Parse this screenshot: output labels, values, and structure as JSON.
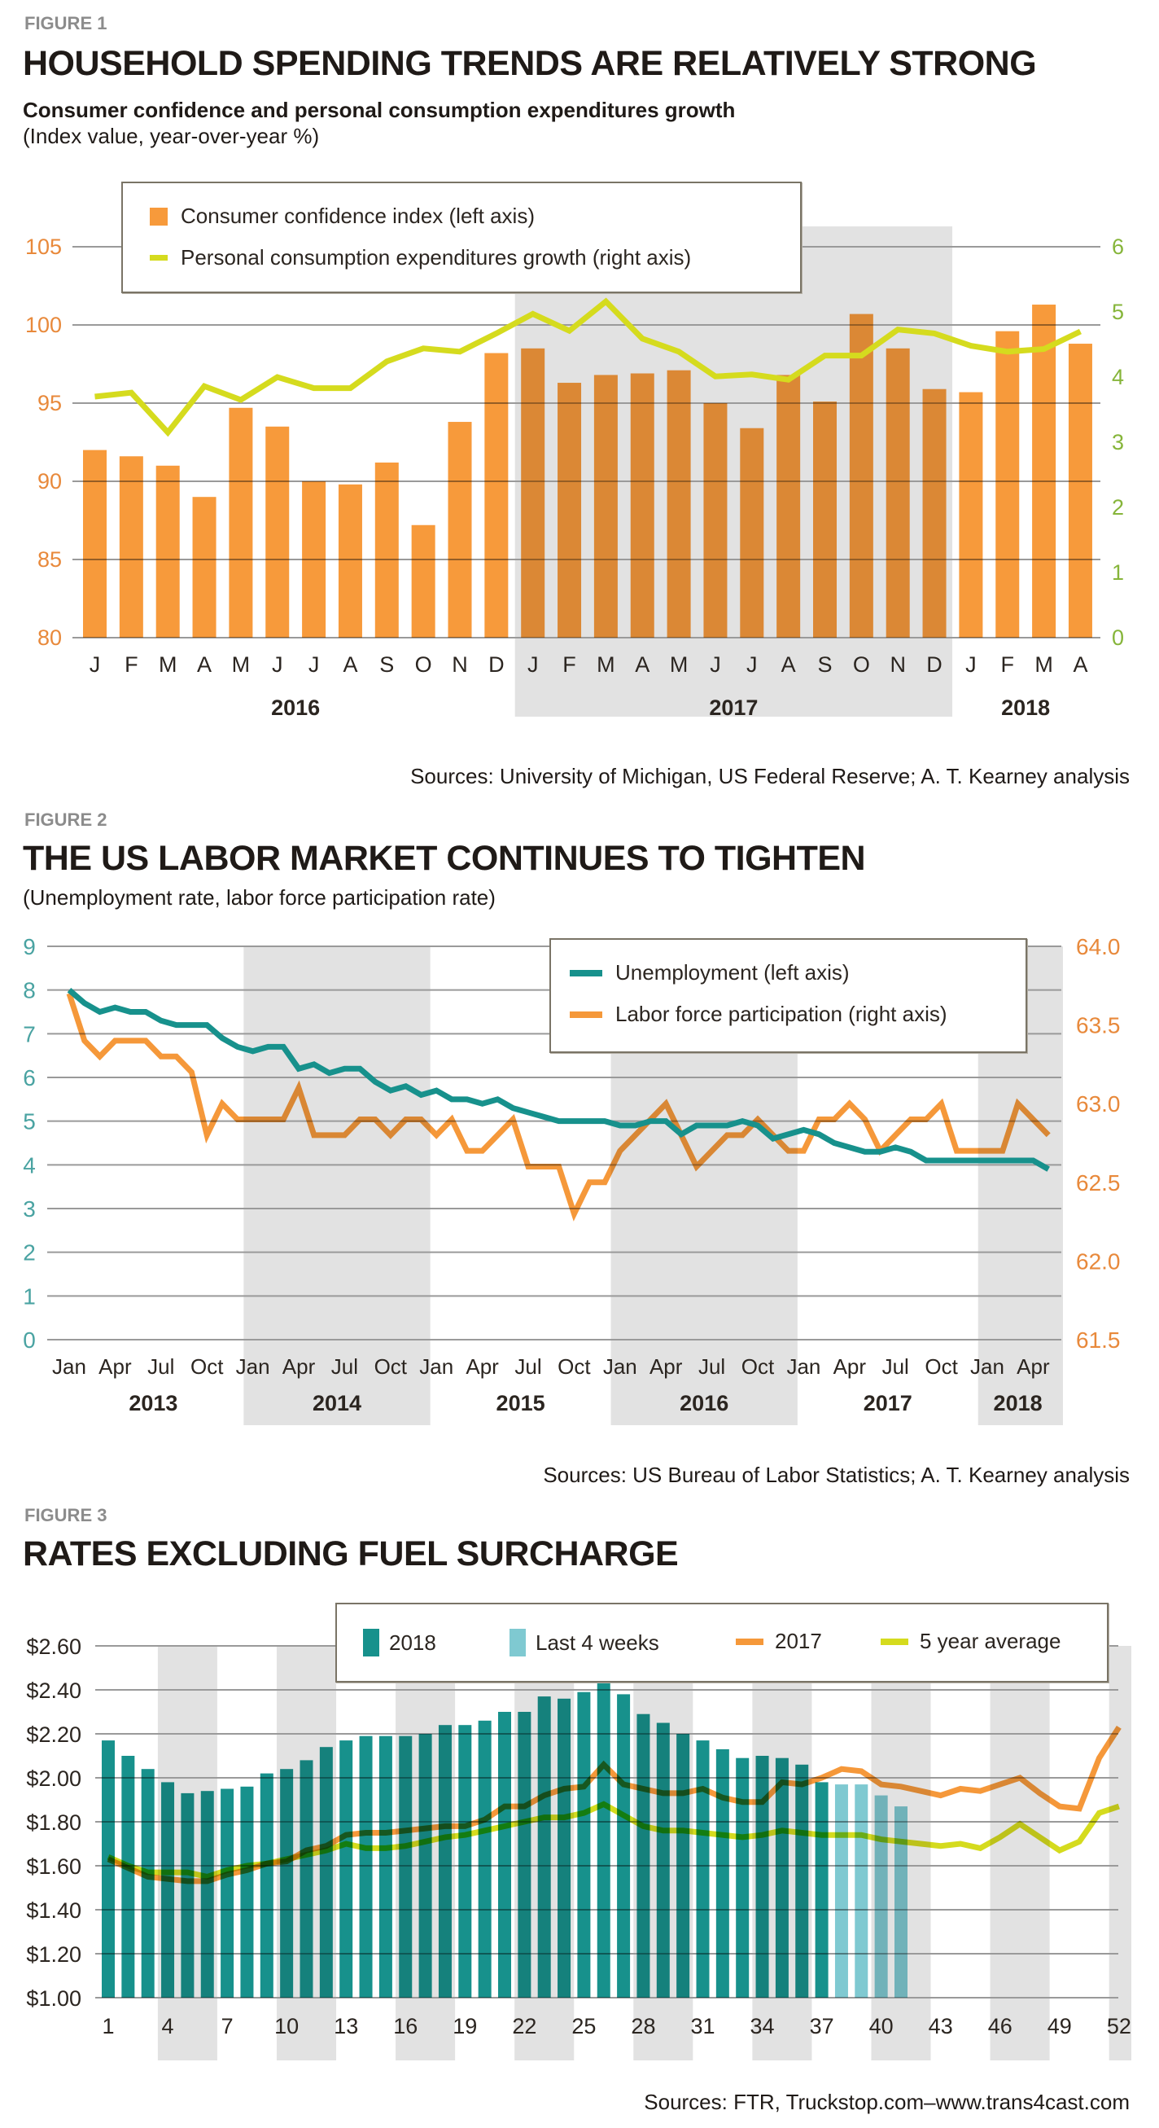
{
  "figure1": {
    "label": "FIGURE 1",
    "title": "HOUSEHOLD SPENDING TRENDS ARE RELATIVELY STRONG",
    "subtitle": "Consumer confidence and personal consumption expenditures growth",
    "note": "(Index value, year-over-year %)",
    "source": "Sources: University of Michigan, US Federal Reserve; A. T. Kearney analysis",
    "legend": [
      "Consumer confidence index (left axis)",
      "Personal consumption expenditures growth (right axis)"
    ]
  },
  "figure2": {
    "label": "FIGURE 2",
    "title": "THE US LABOR MARKET CONTINUES TO TIGHTEN",
    "note": "(Unemployment rate, labor force participation rate)",
    "source": "Sources: US Bureau of Labor Statistics; A. T. Kearney analysis",
    "legend": [
      "Unemployment (left axis)",
      "Labor force participation (right axis)"
    ]
  },
  "figure3": {
    "label": "FIGURE 3",
    "title": "RATES EXCLUDING FUEL SURCHARGE",
    "source": "Sources: FTR, Truckstop.com–www.trans4cast.com",
    "legend": [
      "2018",
      "Last 4 weeks",
      "2017",
      "5 year average"
    ]
  },
  "colors": {
    "bar_orange": "#F79A3B",
    "pce_line": "#D5DB1E",
    "left_axis_orange": "#E8893B",
    "right_axis_green": "#86B53A",
    "teal": "#17918C",
    "light_teal": "#7FC9D1",
    "line_orange": "#F5983A",
    "teal_axis": "#4AA3A2",
    "band_grey": "#E2E2E2"
  },
  "chart_data": [
    {
      "type": "bar",
      "id": "figure1",
      "title": "Consumer confidence and personal consumption expenditures growth",
      "categories": [
        "J",
        "F",
        "M",
        "A",
        "M",
        "J",
        "J",
        "A",
        "S",
        "O",
        "N",
        "D",
        "J",
        "F",
        "M",
        "A",
        "M",
        "J",
        "J",
        "A",
        "S",
        "O",
        "N",
        "D",
        "J",
        "F",
        "M",
        "A"
      ],
      "year_groups": [
        {
          "label": "2016",
          "start": 0,
          "end": 11,
          "shaded": false
        },
        {
          "label": "2017",
          "start": 12,
          "end": 23,
          "shaded": true
        },
        {
          "label": "2018",
          "start": 24,
          "end": 27,
          "shaded": false
        }
      ],
      "series": [
        {
          "name": "Consumer confidence index (left axis)",
          "axis": "left",
          "kind": "bar",
          "values": [
            92.0,
            91.6,
            91.0,
            89.0,
            94.7,
            93.5,
            90.0,
            89.8,
            91.2,
            87.2,
            93.8,
            98.2,
            98.5,
            96.3,
            96.8,
            96.9,
            97.1,
            95.0,
            93.4,
            96.8,
            95.1,
            100.7,
            98.5,
            95.9,
            95.7,
            99.6,
            101.3,
            98.8
          ]
        },
        {
          "name": "Personal consumption expenditures growth (right axis)",
          "axis": "right",
          "kind": "line",
          "values": [
            3.7,
            3.76,
            3.15,
            3.86,
            3.65,
            4.0,
            3.83,
            3.83,
            4.24,
            4.44,
            4.39,
            4.67,
            4.97,
            4.71,
            5.16,
            4.59,
            4.39,
            4.01,
            4.04,
            3.96,
            4.33,
            4.33,
            4.73,
            4.67,
            4.48,
            4.39,
            4.43,
            4.7
          ]
        }
      ],
      "left_axis": {
        "ylim": [
          80,
          105
        ],
        "ticks": [
          80,
          85,
          90,
          95,
          100,
          105
        ]
      },
      "right_axis": {
        "ylim": [
          0,
          6
        ],
        "ticks": [
          0,
          1,
          2,
          3,
          4,
          5,
          6
        ]
      },
      "legend_position": "top-left",
      "grid": true
    },
    {
      "type": "line",
      "id": "figure2",
      "title": "THE US LABOR MARKET CONTINUES TO TIGHTEN",
      "x_start": "Jan 2013",
      "x_end": "May 2018",
      "x_tick_labels": [
        "Jan",
        "Apr",
        "Jul",
        "Oct",
        "Jan",
        "Apr",
        "Jul",
        "Oct",
        "Jan",
        "Apr",
        "Jul",
        "Oct",
        "Jan",
        "Apr",
        "Jul",
        "Oct",
        "Jan",
        "Apr",
        "Jul",
        "Oct",
        "Jan",
        "Apr"
      ],
      "year_labels": [
        "2013",
        "2014",
        "2015",
        "2016",
        "2017",
        "2018"
      ],
      "shaded_years": [
        "2014",
        "2016",
        "2018"
      ],
      "series": [
        {
          "name": "Unemployment (left axis)",
          "axis": "left",
          "values": [
            8.0,
            7.7,
            7.5,
            7.6,
            7.5,
            7.5,
            7.3,
            7.2,
            7.2,
            7.2,
            6.9,
            6.7,
            6.6,
            6.7,
            6.7,
            6.2,
            6.3,
            6.1,
            6.2,
            6.2,
            5.9,
            5.7,
            5.8,
            5.6,
            5.7,
            5.5,
            5.5,
            5.4,
            5.5,
            5.3,
            5.2,
            5.1,
            5.0,
            5.0,
            5.0,
            5.0,
            4.9,
            4.9,
            5.0,
            5.0,
            4.7,
            4.9,
            4.9,
            4.9,
            5.0,
            4.9,
            4.6,
            4.7,
            4.8,
            4.7,
            4.5,
            4.4,
            4.3,
            4.3,
            4.4,
            4.3,
            4.1,
            4.1,
            4.1,
            4.1,
            4.1,
            4.1,
            4.1,
            4.1,
            3.9
          ]
        },
        {
          "name": "Labor force participation (right axis)",
          "axis": "right",
          "values": [
            63.7,
            63.4,
            63.3,
            63.4,
            63.4,
            63.4,
            63.3,
            63.3,
            63.2,
            62.8,
            63.0,
            62.9,
            62.9,
            62.9,
            62.9,
            63.1,
            62.8,
            62.8,
            62.8,
            62.9,
            62.9,
            62.8,
            62.9,
            62.9,
            62.8,
            62.9,
            62.7,
            62.7,
            62.8,
            62.9,
            62.6,
            62.6,
            62.6,
            62.3,
            62.5,
            62.5,
            62.7,
            62.8,
            62.9,
            63.0,
            62.8,
            62.6,
            62.7,
            62.8,
            62.8,
            62.9,
            62.8,
            62.7,
            62.7,
            62.9,
            62.9,
            63.0,
            62.9,
            62.7,
            62.8,
            62.9,
            62.9,
            63.0,
            62.7,
            62.7,
            62.7,
            62.7,
            63.0,
            62.9,
            62.8
          ]
        }
      ],
      "left_axis": {
        "ylim": [
          0,
          9
        ],
        "ticks": [
          0,
          1,
          2,
          3,
          4,
          5,
          6,
          7,
          8,
          9
        ]
      },
      "right_axis": {
        "ylim": [
          61.5,
          64.0
        ],
        "ticks": [
          "61.5",
          "62.0",
          "62.5",
          "63.0",
          "63.5",
          "64.0"
        ]
      },
      "legend_position": "top-right",
      "grid": true
    },
    {
      "type": "bar",
      "id": "figure3",
      "title": "RATES EXCLUDING FUEL SURCHARGE",
      "x_tick_labels": [
        "1",
        "4",
        "7",
        "10",
        "13",
        "16",
        "19",
        "22",
        "25",
        "28",
        "31",
        "34",
        "37",
        "40",
        "43",
        "46",
        "49",
        "52"
      ],
      "weeks": 52,
      "series": [
        {
          "name": "2018",
          "kind": "bar",
          "weeks_from": 1,
          "values": [
            2.17,
            2.1,
            2.04,
            1.98,
            1.93,
            1.94,
            1.95,
            1.96,
            2.02,
            2.04,
            2.08,
            2.14,
            2.17,
            2.19,
            2.19,
            2.19,
            2.2,
            2.24,
            2.24,
            2.26,
            2.3,
            2.3,
            2.37,
            2.36,
            2.39,
            2.45,
            2.38,
            2.29,
            2.25,
            2.2,
            2.17,
            2.13,
            2.09,
            2.1,
            2.09,
            2.06,
            1.98
          ]
        },
        {
          "name": "Last 4 weeks",
          "kind": "bar",
          "weeks_from": 38,
          "values": [
            1.97,
            1.97,
            1.92,
            1.87
          ]
        },
        {
          "name": "2017",
          "kind": "line",
          "values": [
            1.63,
            1.59,
            1.55,
            1.54,
            1.53,
            1.53,
            1.56,
            1.58,
            1.61,
            1.62,
            1.67,
            1.69,
            1.74,
            1.75,
            1.75,
            1.76,
            1.77,
            1.78,
            1.78,
            1.81,
            1.87,
            1.87,
            1.92,
            1.95,
            1.96,
            2.06,
            1.97,
            1.95,
            1.93,
            1.93,
            1.95,
            1.91,
            1.89,
            1.89,
            1.98,
            1.97,
            2.0,
            2.04,
            2.03,
            1.97,
            1.96,
            1.94,
            1.92,
            1.95,
            1.94,
            1.97,
            2.0,
            1.93,
            1.87,
            1.86,
            2.09,
            2.23
          ]
        },
        {
          "name": "5 year average",
          "kind": "line",
          "values": [
            1.64,
            1.6,
            1.57,
            1.57,
            1.57,
            1.55,
            1.58,
            1.6,
            1.61,
            1.63,
            1.65,
            1.67,
            1.7,
            1.68,
            1.68,
            1.69,
            1.71,
            1.73,
            1.74,
            1.76,
            1.78,
            1.8,
            1.82,
            1.82,
            1.84,
            1.88,
            1.83,
            1.78,
            1.76,
            1.76,
            1.75,
            1.74,
            1.73,
            1.74,
            1.76,
            1.75,
            1.74,
            1.74,
            1.74,
            1.72,
            1.71,
            1.7,
            1.69,
            1.7,
            1.68,
            1.73,
            1.79,
            1.73,
            1.67,
            1.71,
            1.84,
            1.87
          ]
        }
      ],
      "y_axis": {
        "ylim": [
          1.0,
          2.6
        ],
        "ticks": [
          "$1.00",
          "$1.20",
          "$1.40",
          "$1.60",
          "$1.80",
          "$2.00",
          "$2.20",
          "$2.40",
          "$2.60"
        ]
      },
      "shaded_week_groups": [
        [
          4,
          6
        ],
        [
          10,
          12
        ],
        [
          16,
          18
        ],
        [
          22,
          24
        ],
        [
          28,
          30
        ],
        [
          34,
          36
        ],
        [
          40,
          42
        ],
        [
          46,
          48
        ],
        [
          52,
          52
        ]
      ],
      "legend_position": "top",
      "grid": true
    }
  ]
}
